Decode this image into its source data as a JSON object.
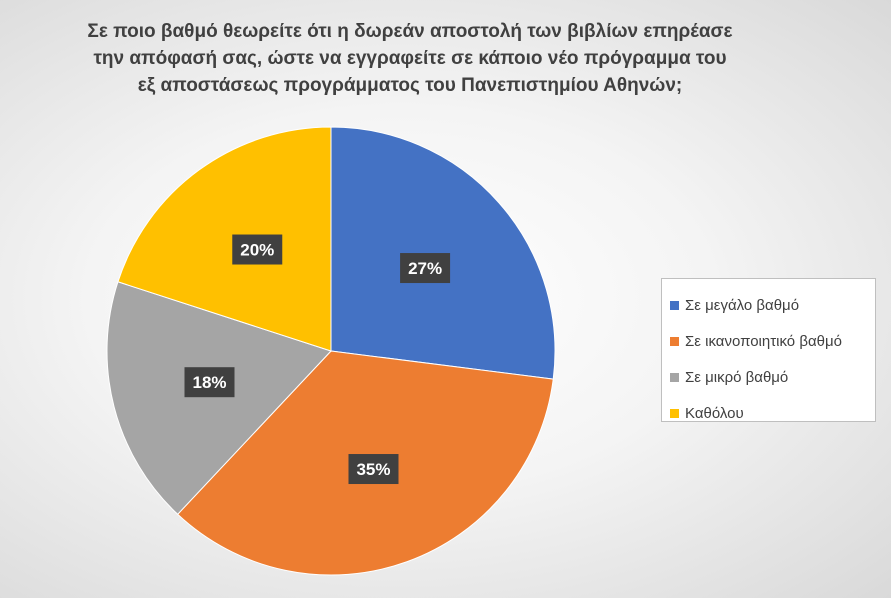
{
  "chart_data": {
    "type": "pie",
    "title_lines": [
      "Σε ποιο βαθμό θεωρείτε ότι η δωρεάν αποστολή των βιβλίων επηρέασε",
      "την απόφασή σας, ώστε να εγγραφείτε σε κάποιο νέο πρόγραμμα του",
      "εξ αποστάσεως προγράμματος του Πανεπιστημίου Αθηνών;"
    ],
    "legend_position": "right",
    "slices": [
      {
        "label": "Σε μεγάλο βαθμό",
        "value": 27,
        "display": "27%",
        "color": "#4472c4"
      },
      {
        "label": "Σε ικανοποιητικό βαθμό",
        "value": 35,
        "display": "35%",
        "color": "#ed7d31"
      },
      {
        "label": "Σε μικρό βαθμό",
        "value": 18,
        "display": "18%",
        "color": "#a5a5a5"
      },
      {
        "label": "Καθόλου",
        "value": 20,
        "display": "20%",
        "color": "#ffc000"
      }
    ]
  }
}
